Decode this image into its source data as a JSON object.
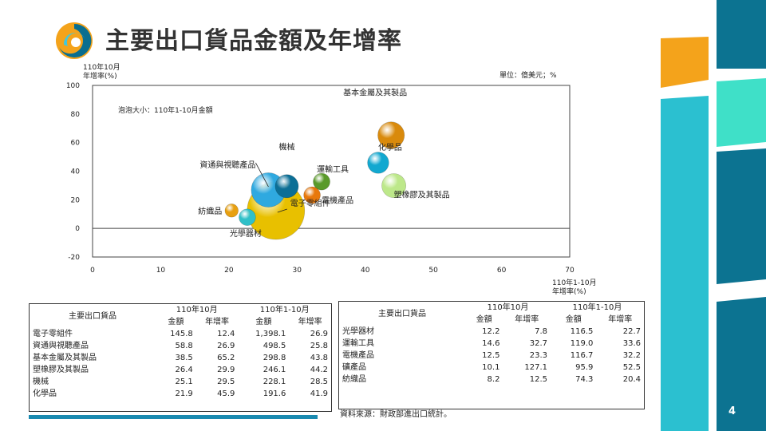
{
  "title": "主要出口貨品金額及年增率",
  "page_number": "4",
  "unit_note": "單位：億美元；%",
  "bubble_note": "泡泡大小：110年1-10月金額",
  "y_axis_label_line1": "110年10月",
  "y_axis_label_line2": "年增率(%)",
  "x_axis_label_line1": "110年1-10月",
  "x_axis_label_line2": "年增率(%)",
  "source": "資料來源：財政部進出口統計。",
  "colors": {
    "brand_blue": "#0a6e8f",
    "orange": "#f4a31b",
    "teal": "#3fe0c8",
    "deep_blue": "#0c7391"
  },
  "chart_data": {
    "type": "scatter",
    "subtype": "bubble",
    "xlim": [
      0,
      70
    ],
    "ylim": [
      -20,
      100
    ],
    "x_ticks": [
      0,
      10,
      20,
      30,
      40,
      50,
      60,
      70
    ],
    "y_ticks": [
      -20,
      0,
      20,
      40,
      60,
      80,
      100
    ],
    "grid": false,
    "points": [
      {
        "label": "電子零組件",
        "x": 26.9,
        "y": 12.4,
        "size": 1398.1,
        "color": "#e8c000"
      },
      {
        "label": "資通與視聽產品",
        "x": 25.8,
        "y": 26.9,
        "size": 498.5,
        "color": "#2fa9e0"
      },
      {
        "label": "機械",
        "x": 28.5,
        "y": 29.5,
        "size": 228.1,
        "color": "#0c6f96"
      },
      {
        "label": "基本金屬及其製品",
        "x": 43.8,
        "y": 65.2,
        "size": 298.8,
        "color": "#d98a0c"
      },
      {
        "label": "化學品",
        "x": 41.9,
        "y": 45.9,
        "size": 191.6,
        "color": "#12a8d0"
      },
      {
        "label": "塑橡膠及其製品",
        "x": 44.2,
        "y": 29.9,
        "size": 246.1,
        "color": "#bde88a"
      },
      {
        "label": "運輸工具",
        "x": 33.6,
        "y": 32.7,
        "size": 119.0,
        "color": "#5a9a2a"
      },
      {
        "label": "電機產品",
        "x": 32.2,
        "y": 23.3,
        "size": 116.7,
        "color": "#e8780c"
      },
      {
        "label": "紡織品",
        "x": 20.4,
        "y": 12.5,
        "size": 74.3,
        "color": "#e8a010"
      },
      {
        "label": "光學器材",
        "x": 22.7,
        "y": 7.8,
        "size": 116.5,
        "color": "#30c0c8"
      }
    ]
  },
  "table_left": {
    "header_product": "主要出口貨品",
    "group1": "110年10月",
    "group2": "110年1-10月",
    "sub_amount": "金額",
    "sub_growth": "年增率",
    "rows": [
      {
        "name": "電子零組件",
        "m_amt": "145.8",
        "m_gr": "12.4",
        "y_amt": "1,398.1",
        "y_gr": "26.9"
      },
      {
        "name": "資通與視聽產品",
        "m_amt": "58.8",
        "m_gr": "26.9",
        "y_amt": "498.5",
        "y_gr": "25.8"
      },
      {
        "name": "基本金屬及其製品",
        "m_amt": "38.5",
        "m_gr": "65.2",
        "y_amt": "298.8",
        "y_gr": "43.8"
      },
      {
        "name": "塑橡膠及其製品",
        "m_amt": "26.4",
        "m_gr": "29.9",
        "y_amt": "246.1",
        "y_gr": "44.2"
      },
      {
        "name": "機械",
        "m_amt": "25.1",
        "m_gr": "29.5",
        "y_amt": "228.1",
        "y_gr": "28.5"
      },
      {
        "name": "化學品",
        "m_amt": "21.9",
        "m_gr": "45.9",
        "y_amt": "191.6",
        "y_gr": "41.9"
      }
    ]
  },
  "table_right": {
    "header_product": "主要出口貨品",
    "group1": "110年10月",
    "group2": "110年1-10月",
    "sub_amount": "金額",
    "sub_growth": "年增率",
    "rows": [
      {
        "name": "光學器材",
        "m_amt": "12.2",
        "m_gr": "7.8",
        "y_amt": "116.5",
        "y_gr": "22.7"
      },
      {
        "name": "運輸工具",
        "m_amt": "14.6",
        "m_gr": "32.7",
        "y_amt": "119.0",
        "y_gr": "33.6"
      },
      {
        "name": "電機產品",
        "m_amt": "12.5",
        "m_gr": "23.3",
        "y_amt": "116.7",
        "y_gr": "32.2"
      },
      {
        "name": "礦產品",
        "m_amt": "10.1",
        "m_gr": "127.1",
        "y_amt": "95.9",
        "y_gr": "52.5"
      },
      {
        "name": "紡織品",
        "m_amt": "8.2",
        "m_gr": "12.5",
        "y_amt": "74.3",
        "y_gr": "20.4"
      }
    ]
  }
}
